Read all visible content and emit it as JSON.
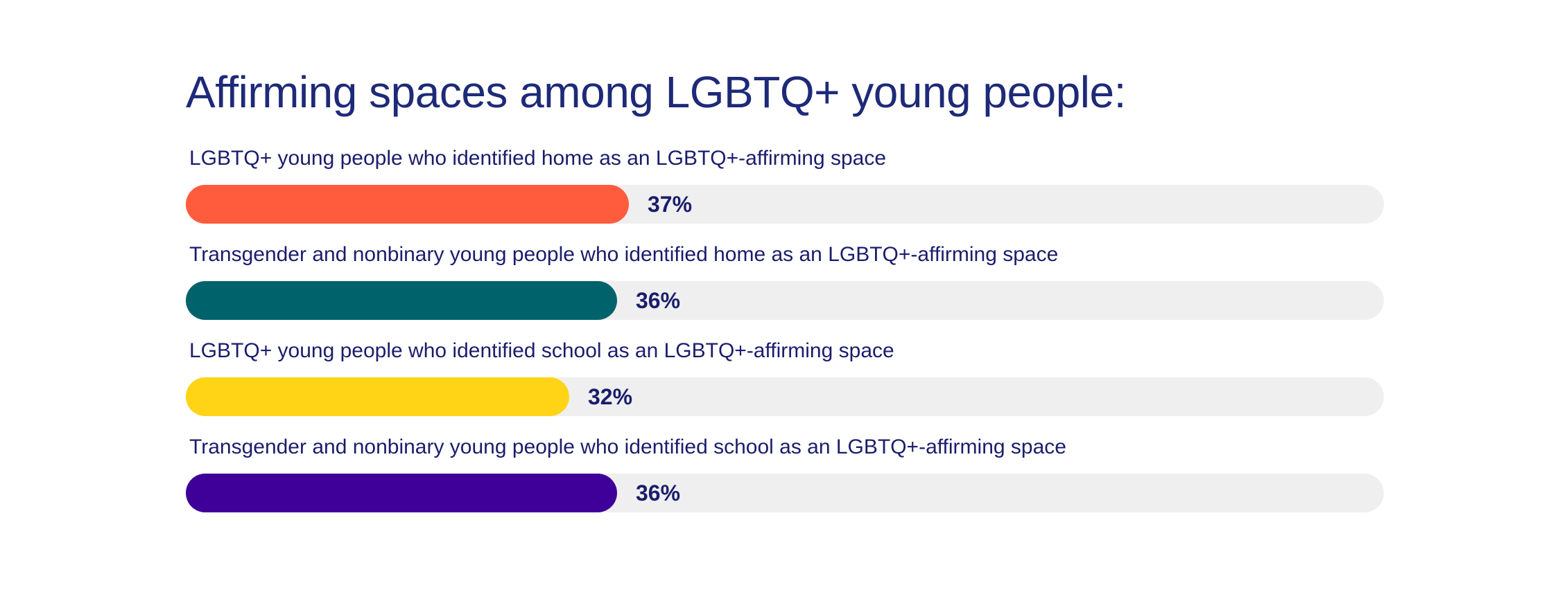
{
  "chart_data": {
    "type": "bar",
    "orientation": "horizontal",
    "title": "Affirming spaces among LGBTQ+ young people:",
    "xlim": [
      0,
      100
    ],
    "grid": false,
    "legend": "none",
    "categories": [
      "LGBTQ+ young people who identified home as an LGBTQ+-affirming space",
      "Transgender and nonbinary young people who identified home as an LGBTQ+-affirming space",
      "LGBTQ+ young people who identified school as an LGBTQ+-affirming space",
      "Transgender and nonbinary young people who identified school as an LGBTQ+-affirming space"
    ],
    "values": [
      37,
      36,
      32,
      36
    ],
    "value_labels": [
      "37%",
      "36%",
      "32%",
      "36%"
    ],
    "colors": [
      "#ff5c3e",
      "#00636b",
      "#ffd417",
      "#3f0099"
    ],
    "track_color": "#efefef"
  }
}
